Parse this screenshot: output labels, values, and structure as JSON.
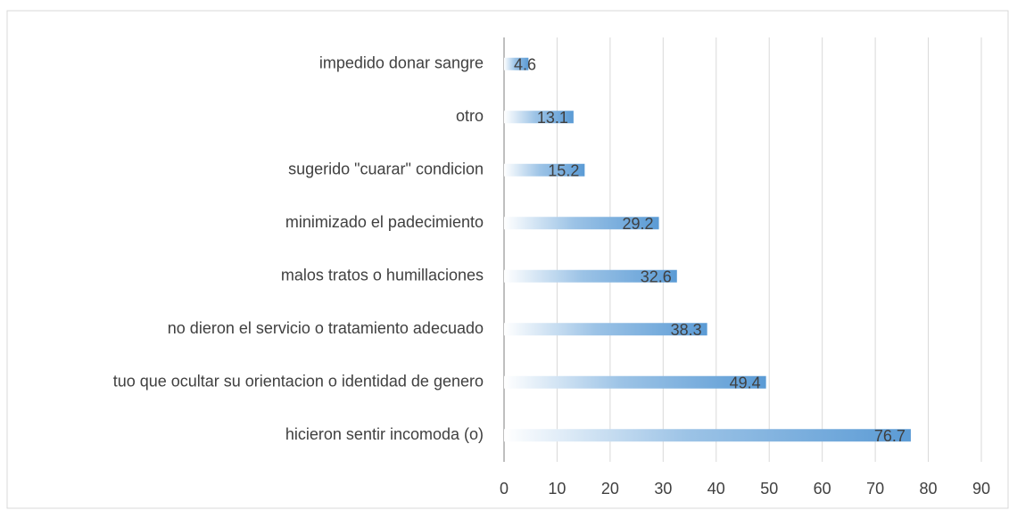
{
  "chart_data": {
    "type": "barh",
    "categories": [
      "impedido donar sangre",
      "otro",
      "sugerido \"cuarar\" condicion",
      "minimizado el padecimiento",
      "malos tratos o humillaciones",
      "no dieron el servicio o tratamiento adecuado",
      "tuo que ocultar su orientacion o identidad de genero",
      "hicieron sentir incomoda (o)"
    ],
    "values": [
      4.6,
      13.1,
      15.2,
      29.2,
      32.6,
      38.3,
      49.4,
      76.7
    ],
    "color": "#5b9bd5",
    "xlim": [
      0,
      90
    ],
    "xticks": [
      0,
      10,
      20,
      30,
      40,
      50,
      60,
      70,
      80,
      90
    ],
    "grid": true
  }
}
